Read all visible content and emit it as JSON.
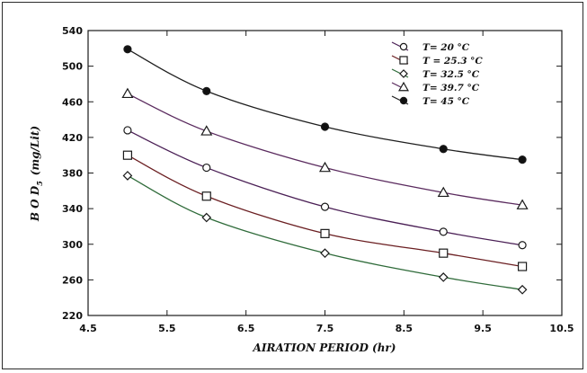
{
  "chart_data": {
    "type": "line",
    "title": "",
    "xlabel": "AIRATION PERIOD (hr)",
    "ylabel_main": "B O D",
    "ylabel_sub": "5",
    "ylabel_unit": "(mg/Lit)",
    "xlim": [
      4.5,
      10.5
    ],
    "ylim": [
      220,
      540
    ],
    "xticks": [
      "4.5",
      "5.5",
      "6.5",
      "7.5",
      "8.5",
      "9.5",
      "10.5"
    ],
    "yticks": [
      "220",
      "260",
      "300",
      "340",
      "380",
      "420",
      "460",
      "500",
      "540"
    ],
    "x": [
      5,
      6,
      7.5,
      9,
      10
    ],
    "grid": false,
    "legend_position": "top-right",
    "series": [
      {
        "name": "T= 20 °C",
        "marker": "circle",
        "color": "#4a1f55",
        "values": [
          428,
          386,
          342,
          314,
          299
        ]
      },
      {
        "name": "T = 25.3 °C",
        "marker": "square",
        "color": "#6b1f22",
        "values": [
          400,
          354,
          312,
          290,
          275
        ]
      },
      {
        "name": "T= 32.5 °C",
        "marker": "diamond",
        "color": "#2f6b3a",
        "values": [
          377,
          330,
          290,
          263,
          249
        ]
      },
      {
        "name": "T= 39.7 °C",
        "marker": "triangle",
        "color": "#5a2a5e",
        "values": [
          469,
          427,
          386,
          358,
          344
        ]
      },
      {
        "name": "T= 45 °C",
        "marker": "filled-circle",
        "color": "#1f1f1f",
        "values": [
          519,
          472,
          432,
          407,
          395
        ]
      }
    ]
  }
}
